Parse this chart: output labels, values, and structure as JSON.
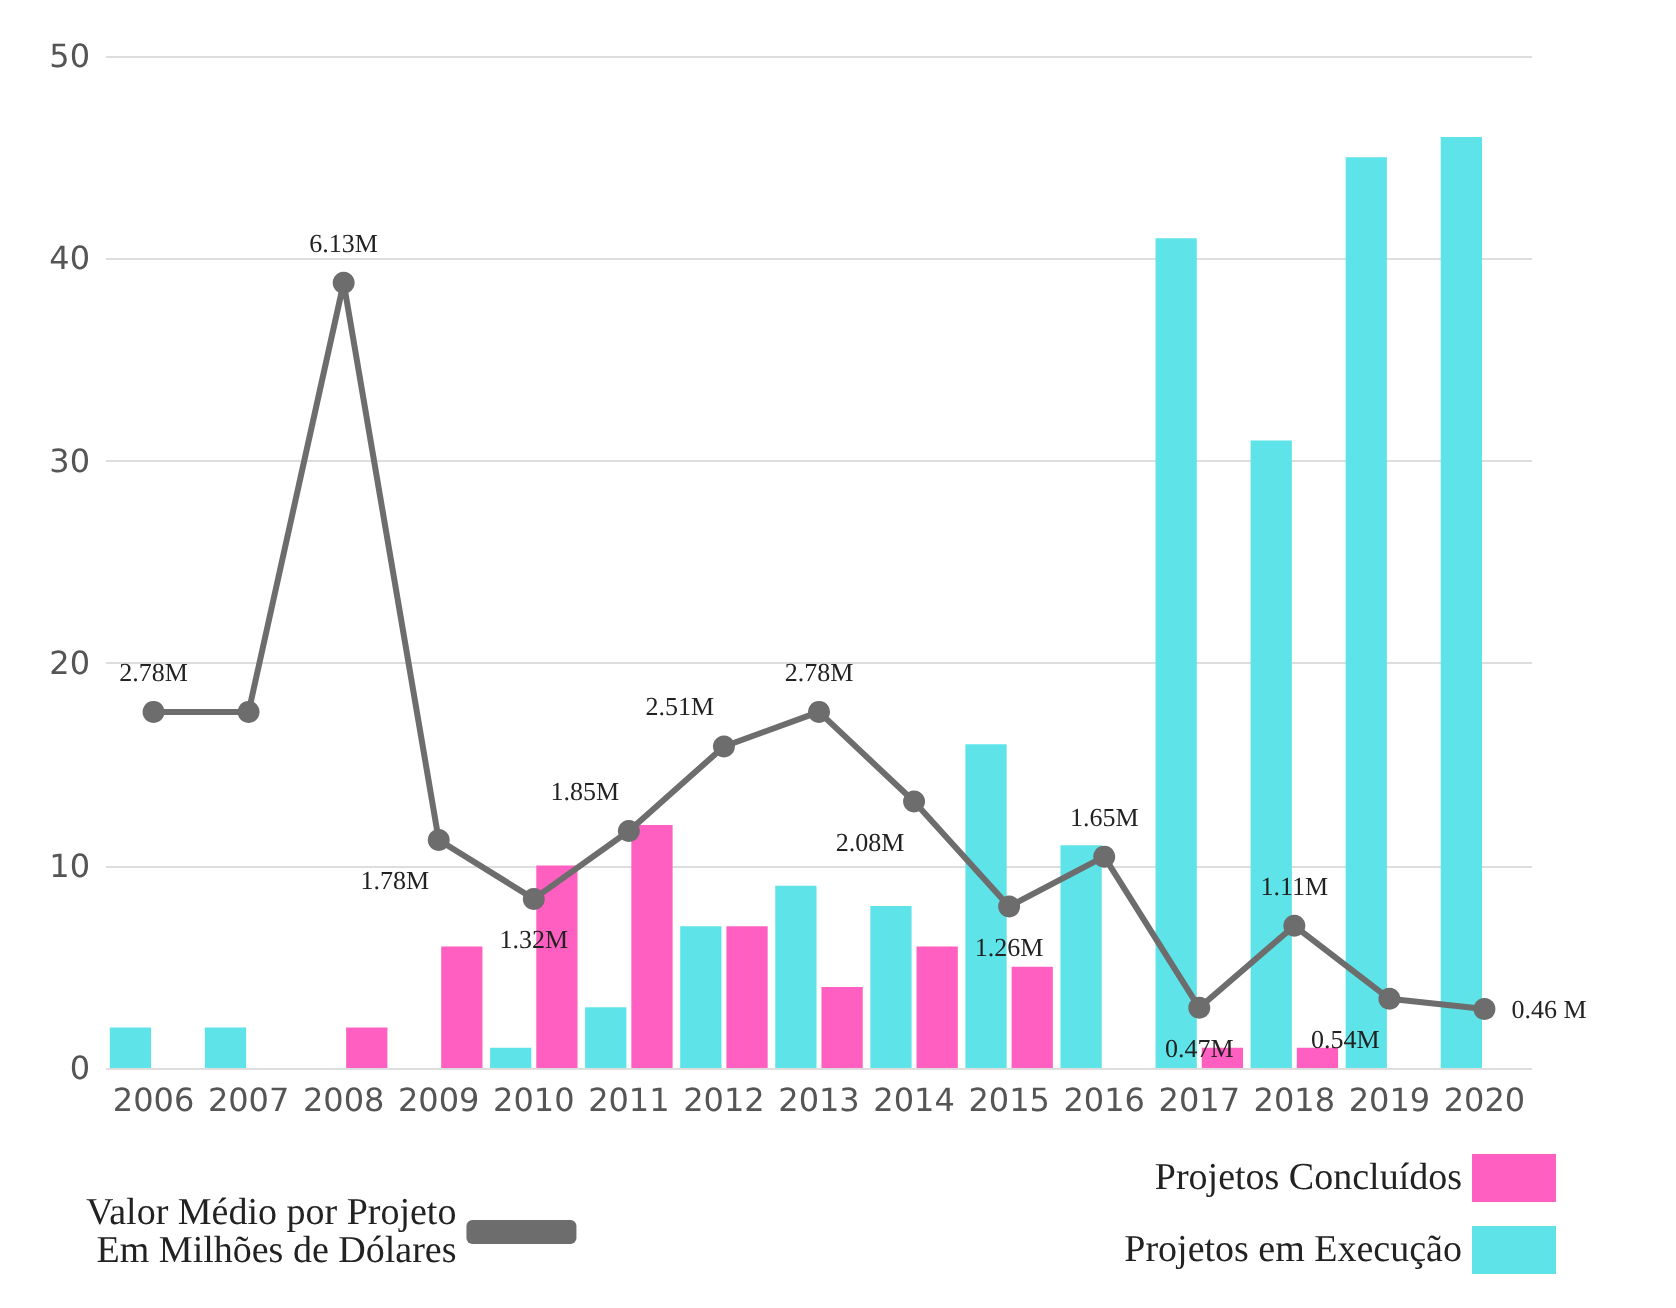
{
  "chart_data": {
    "type": "bar",
    "categories": [
      "2006",
      "2007",
      "2008",
      "2009",
      "2010",
      "2011",
      "2012",
      "2013",
      "2014",
      "2015",
      "2016",
      "2017",
      "2018",
      "2019",
      "2020"
    ],
    "series": [
      {
        "name": "Projetos em Execução",
        "color": "#5ee3e8",
        "values": [
          2,
          2,
          null,
          null,
          1,
          3,
          7,
          9,
          8,
          16,
          11,
          41,
          31,
          45,
          46
        ]
      },
      {
        "name": "Projetos Concluídos",
        "color": "#ff5fc1",
        "values": [
          null,
          null,
          2,
          6,
          10,
          12,
          7,
          4,
          6,
          5,
          null,
          1,
          1,
          null,
          null
        ]
      },
      {
        "name": "Valor Médio por Projeto\nEm Milhões de Dólares",
        "type": "line",
        "axis": "y2",
        "color": "#6d6d6d",
        "marker": "circle",
        "values": [
          2.78,
          2.78,
          6.13,
          1.78,
          1.32,
          1.85,
          2.51,
          2.78,
          2.08,
          1.26,
          1.65,
          0.47,
          1.11,
          0.54,
          0.46
        ],
        "value_labels": [
          "2.78M",
          null,
          "6.13M",
          "1.78M",
          "1.32M",
          "1.85M",
          "2.51M",
          "2.78M",
          "2.08M",
          "1.26M",
          "1.65M",
          "0.47M",
          "1.11M",
          "0.54M",
          "0.46 M"
        ]
      }
    ],
    "ylim": [
      0,
      50
    ],
    "y2lim": [
      0,
      7.9
    ],
    "yticks": [
      0,
      10,
      20,
      30,
      40,
      50
    ],
    "grid": "y",
    "legend": "bottom"
  }
}
